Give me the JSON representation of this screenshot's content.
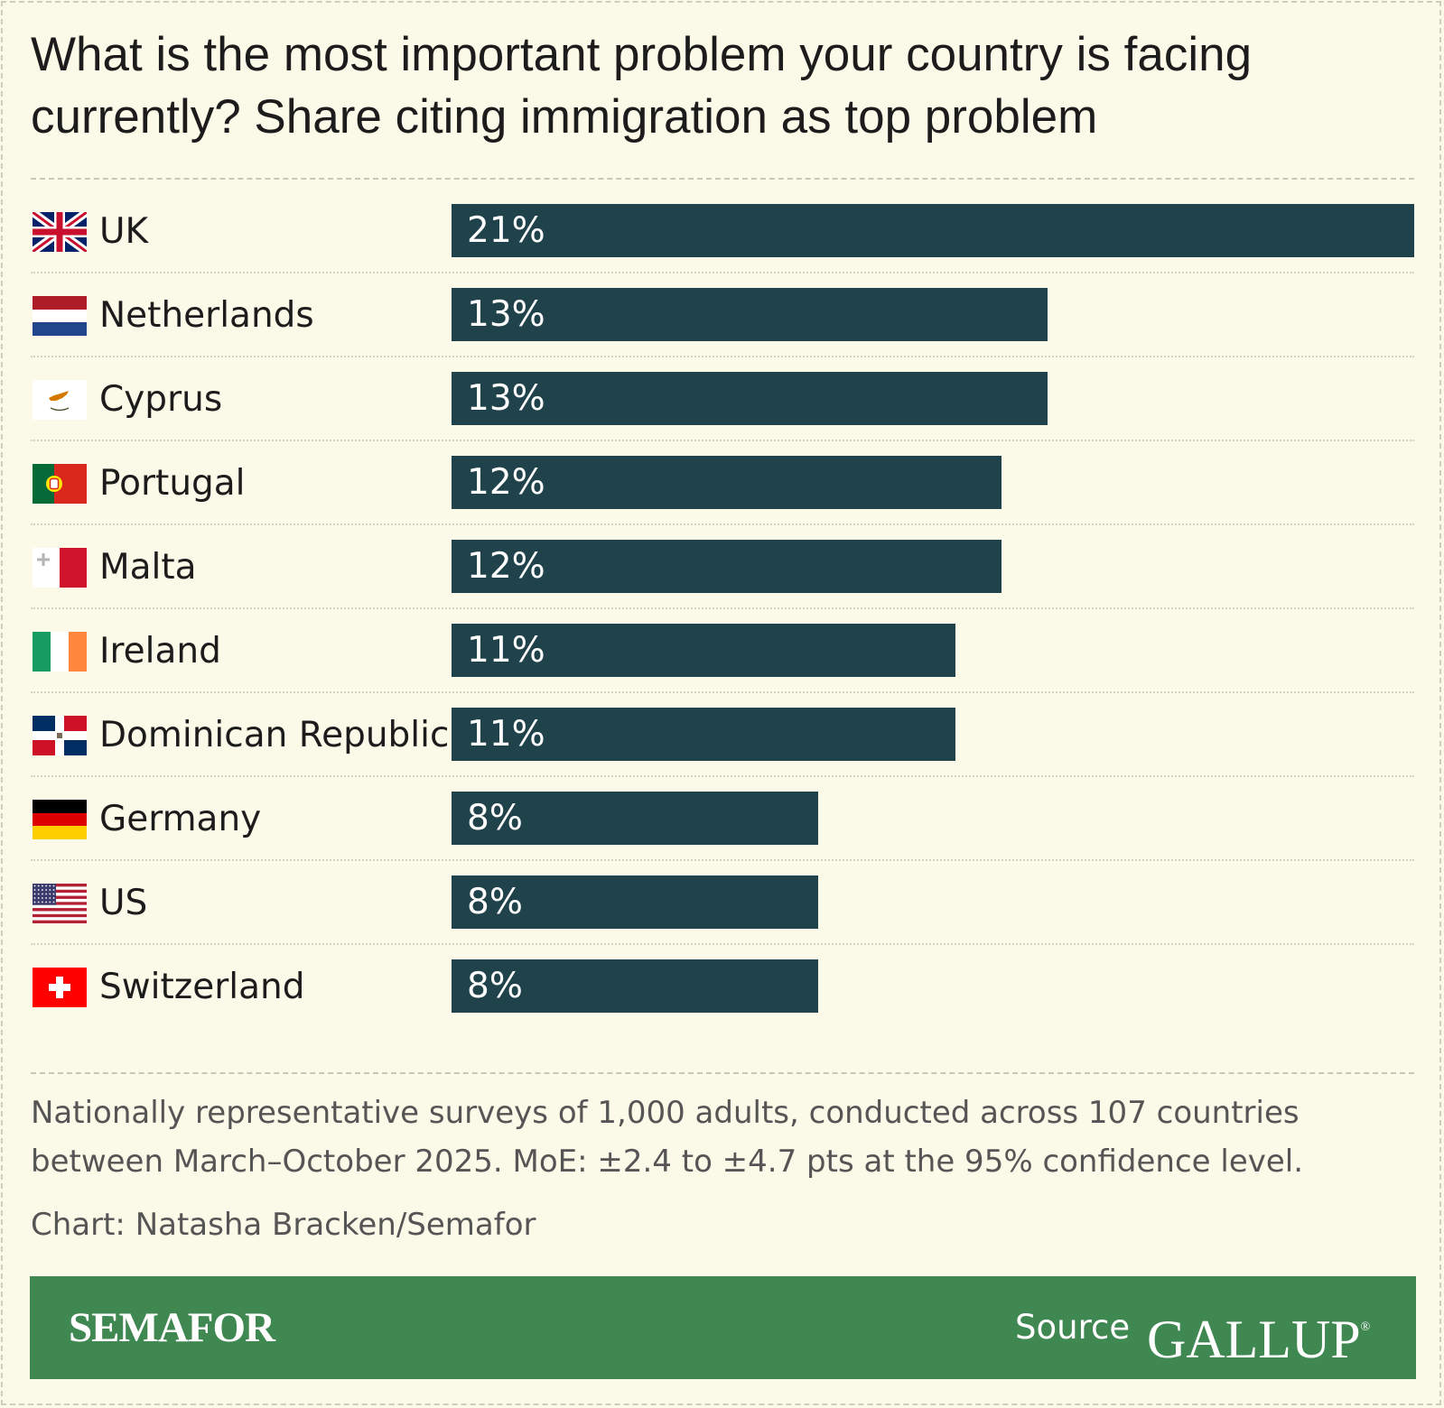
{
  "colors": {
    "background": "#fbf9e7",
    "bar": "#20424b",
    "bar_text": "#ffffff",
    "footer": "#408852"
  },
  "chart_data": {
    "type": "bar",
    "orientation": "horizontal",
    "title": "What is the most important problem your country is facing currently? Share citing immigration as top problem",
    "categories": [
      "UK",
      "Netherlands",
      "Cyprus",
      "Portugal",
      "Malta",
      "Ireland",
      "Dominican Republic",
      "Germany",
      "US",
      "Switzerland"
    ],
    "values": [
      21,
      13,
      13,
      12,
      12,
      11,
      11,
      8,
      8,
      8
    ],
    "value_labels": [
      "21%",
      "13%",
      "13%",
      "12%",
      "12%",
      "11%",
      "11%",
      "8%",
      "8%",
      "8%"
    ],
    "flags": [
      "uk-flag-icon",
      "netherlands-flag-icon",
      "cyprus-flag-icon",
      "portugal-flag-icon",
      "malta-flag-icon",
      "ireland-flag-icon",
      "dominican-republic-flag-icon",
      "germany-flag-icon",
      "us-flag-icon",
      "switzerland-flag-icon"
    ],
    "unit": "%",
    "xlim": [
      0,
      21
    ],
    "grid": false,
    "legend": "none"
  },
  "note": "Nationally representative surveys of 1,000 adults, conducted across 107 countries between March–October 2025. MoE: ±2.4 to ±4.7 pts at the 95% confidence level.",
  "credit": "Chart: Natasha Bracken/Semafor",
  "footer": {
    "brand": "SEMAFOR",
    "source_label": "Source",
    "source_name": "GALLUP",
    "source_mark": "®"
  }
}
